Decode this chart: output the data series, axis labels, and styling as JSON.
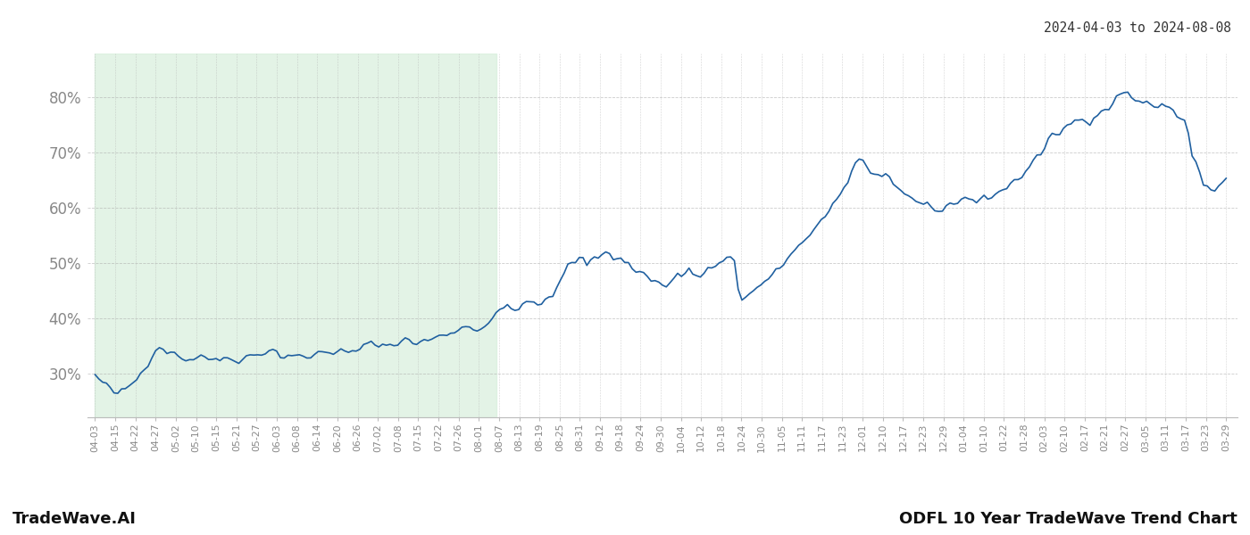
{
  "title_top_right": "2024-04-03 to 2024-08-08",
  "footer_left": "TradeWave.AI",
  "footer_right": "ODFL 10 Year TradeWave Trend Chart",
  "background_color": "#ffffff",
  "line_color": "#2060a0",
  "highlight_color": "#d4edda",
  "highlight_alpha": 0.65,
  "ylim": [
    22,
    88
  ],
  "yticks": [
    30,
    40,
    50,
    60,
    70,
    80
  ],
  "grid_color": "#aaaaaa",
  "grid_alpha": 0.6,
  "tick_label_color": "#888888",
  "x_labels": [
    "04-03",
    "04-15",
    "04-22",
    "04-27",
    "05-02",
    "05-10",
    "05-15",
    "05-21",
    "05-27",
    "06-03",
    "06-08",
    "06-14",
    "06-20",
    "06-26",
    "07-02",
    "07-08",
    "07-15",
    "07-22",
    "07-26",
    "08-01",
    "08-07",
    "08-13",
    "08-19",
    "08-25",
    "08-31",
    "09-12",
    "09-18",
    "09-24",
    "09-30",
    "10-04",
    "10-12",
    "10-18",
    "10-24",
    "10-30",
    "11-05",
    "11-11",
    "11-17",
    "11-23",
    "12-01",
    "12-10",
    "12-17",
    "12-23",
    "12-29",
    "01-04",
    "01-10",
    "01-22",
    "01-28",
    "02-03",
    "02-10",
    "02-17",
    "02-21",
    "02-27",
    "03-05",
    "03-11",
    "03-17",
    "03-23",
    "03-29"
  ],
  "highlight_label_start": "04-03",
  "highlight_label_end": "08-07",
  "n_data_points": 300,
  "line_width": 1.2
}
